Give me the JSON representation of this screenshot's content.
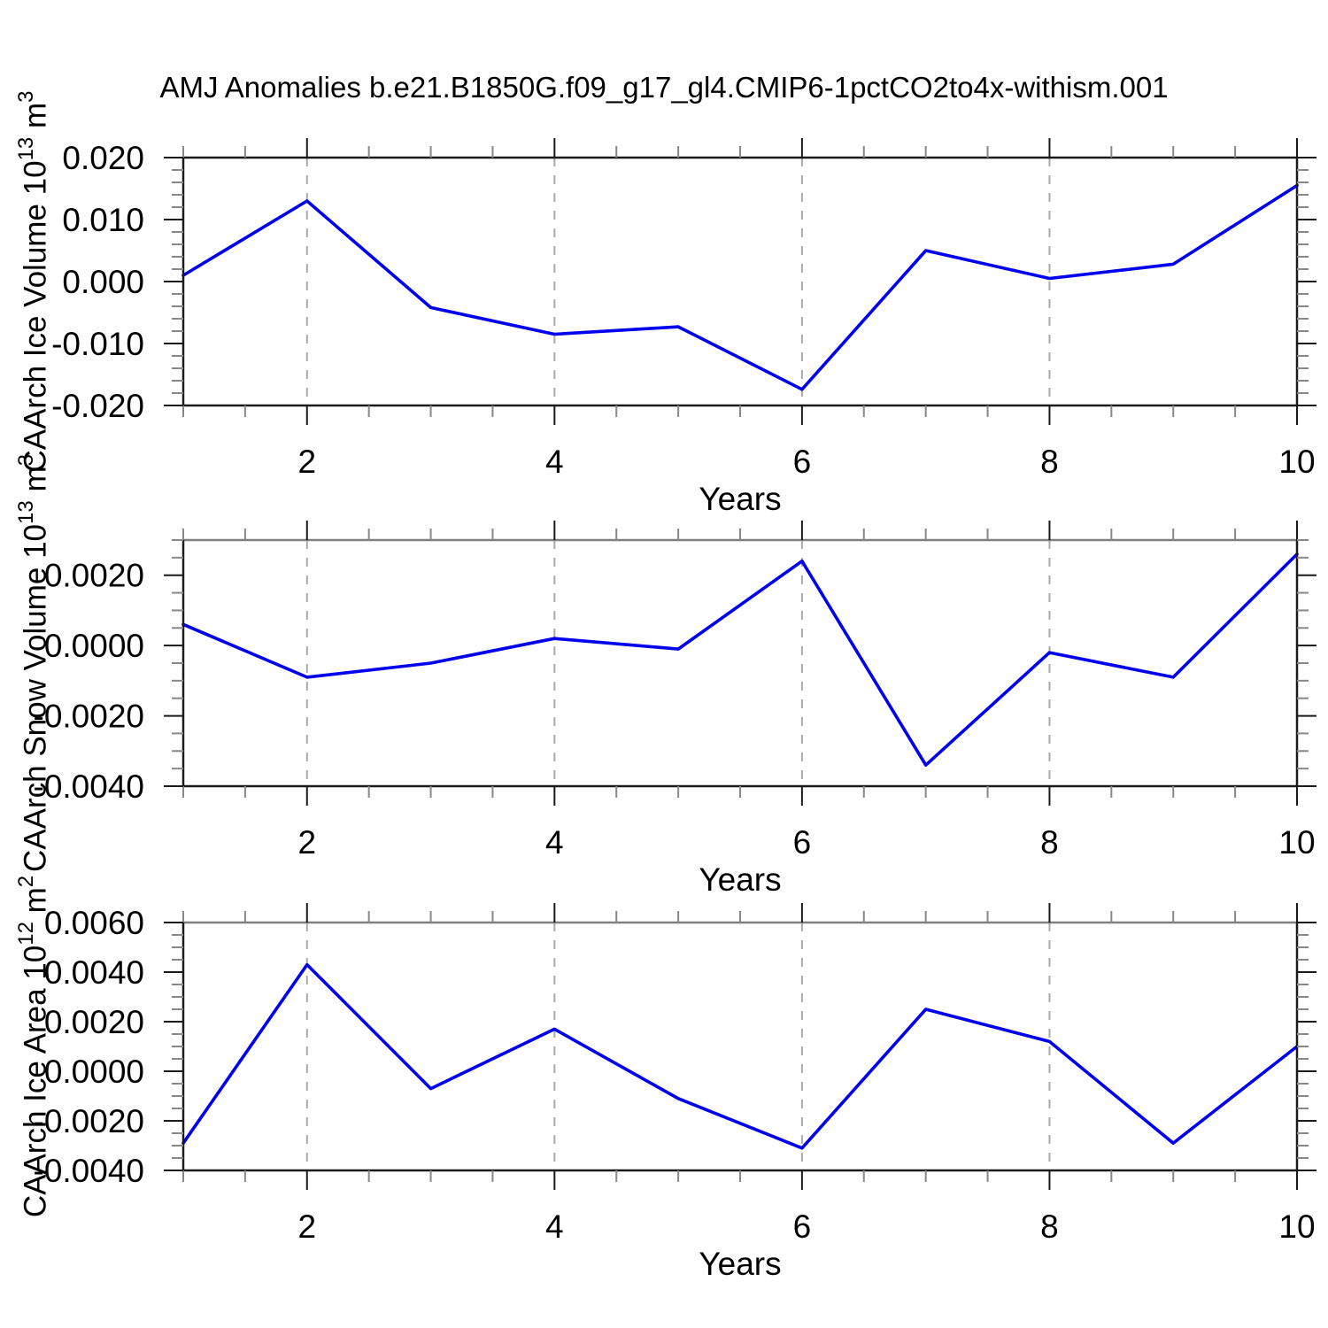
{
  "title": "AMJ Anomalies b.e21.B1850G.f09_g17_gl4.CMIP6-1pctCO2to4x-withism.001",
  "line_color": "#0000ee",
  "grid_color": "#aaaaaa",
  "axis_color": "#1a1a1a",
  "top_spine_color_middle_bottom": "#808080",
  "minor_tick_color": "#888888",
  "chart_data": [
    {
      "type": "line",
      "title": "",
      "xlabel": "Years",
      "ylabel": "CAArch Ice Volume 10^13 m^3",
      "ylabel_parts": {
        "pre": "CAArch Ice Volume 10",
        "sup": "13",
        "mid": " m",
        "sup2": "3"
      },
      "x": [
        1,
        2,
        3,
        4,
        5,
        6,
        7,
        8,
        9,
        10
      ],
      "values": [
        0.001,
        0.013,
        -0.0042,
        -0.0085,
        -0.0073,
        -0.0174,
        0.005,
        0.0005,
        0.0028,
        0.0155
      ],
      "xlim": [
        1,
        10
      ],
      "ylim": [
        -0.02,
        0.02
      ],
      "yticks": [
        0.02,
        0.01,
        0.0,
        -0.01,
        -0.02
      ],
      "ytick_labels": [
        "0.020",
        "0.010",
        "0.000",
        "-0.010",
        "-0.020"
      ],
      "minor_y_step": 0.002,
      "xticks_major": [
        2,
        4,
        6,
        8,
        10
      ],
      "xtick_labels": [
        "2",
        "4",
        "6",
        "8",
        "10"
      ],
      "minor_x_step": 0.5,
      "grid_years": [
        2,
        4,
        6,
        8
      ],
      "grid_on": true,
      "legend": "none"
    },
    {
      "type": "line",
      "title": "",
      "xlabel": "Years",
      "ylabel": "CAArch Snow Volume 10^13 m^3",
      "ylabel_parts": {
        "pre": "CAArch Snow Volume 10",
        "sup": "13",
        "mid": " m",
        "sup2": "3"
      },
      "x": [
        1,
        2,
        3,
        4,
        5,
        6,
        7,
        8,
        9,
        10
      ],
      "values": [
        0.0006,
        -0.0009,
        -0.0005,
        0.0002,
        -0.0001,
        0.0024,
        -0.0034,
        -0.0002,
        -0.0009,
        0.0026
      ],
      "xlim": [
        1,
        10
      ],
      "ylim": [
        -0.004,
        0.003
      ],
      "yticks": [
        0.002,
        0.0,
        -0.002,
        -0.004
      ],
      "ytick_labels": [
        "0.0020",
        "0.0000",
        "-0.0020",
        "-0.0040"
      ],
      "minor_y_step": 0.0005,
      "xticks_major": [
        2,
        4,
        6,
        8,
        10
      ],
      "xtick_labels": [
        "2",
        "4",
        "6",
        "8",
        "10"
      ],
      "minor_x_step": 0.5,
      "grid_years": [
        2,
        4,
        6,
        8
      ],
      "grid_on": true,
      "legend": "none"
    },
    {
      "type": "line",
      "title": "",
      "xlabel": "Years",
      "ylabel": "CAArch Ice Area 10^12 m^2",
      "ylabel_parts": {
        "pre": "CAArch Ice Area 10",
        "sup": "12",
        "mid": " m",
        "sup2": "2"
      },
      "x": [
        1,
        2,
        3,
        4,
        5,
        6,
        7,
        8,
        9,
        10
      ],
      "values": [
        -0.0029,
        0.0043,
        -0.0007,
        0.0017,
        -0.0011,
        -0.0031,
        0.0025,
        0.0012,
        -0.0029,
        0.001
      ],
      "xlim": [
        1,
        10
      ],
      "ylim": [
        -0.004,
        0.006
      ],
      "yticks": [
        0.006,
        0.004,
        0.002,
        0.0,
        -0.002,
        -0.004
      ],
      "ytick_labels": [
        "0.0060",
        "0.0040",
        "0.0020",
        "0.0000",
        "-0.0020",
        "-0.0040"
      ],
      "minor_y_step": 0.0005,
      "xticks_major": [
        2,
        4,
        6,
        8,
        10
      ],
      "xtick_labels": [
        "2",
        "4",
        "6",
        "8",
        "10"
      ],
      "minor_x_step": 0.5,
      "grid_years": [
        2,
        4,
        6,
        8
      ],
      "grid_on": true,
      "legend": "none"
    }
  ]
}
